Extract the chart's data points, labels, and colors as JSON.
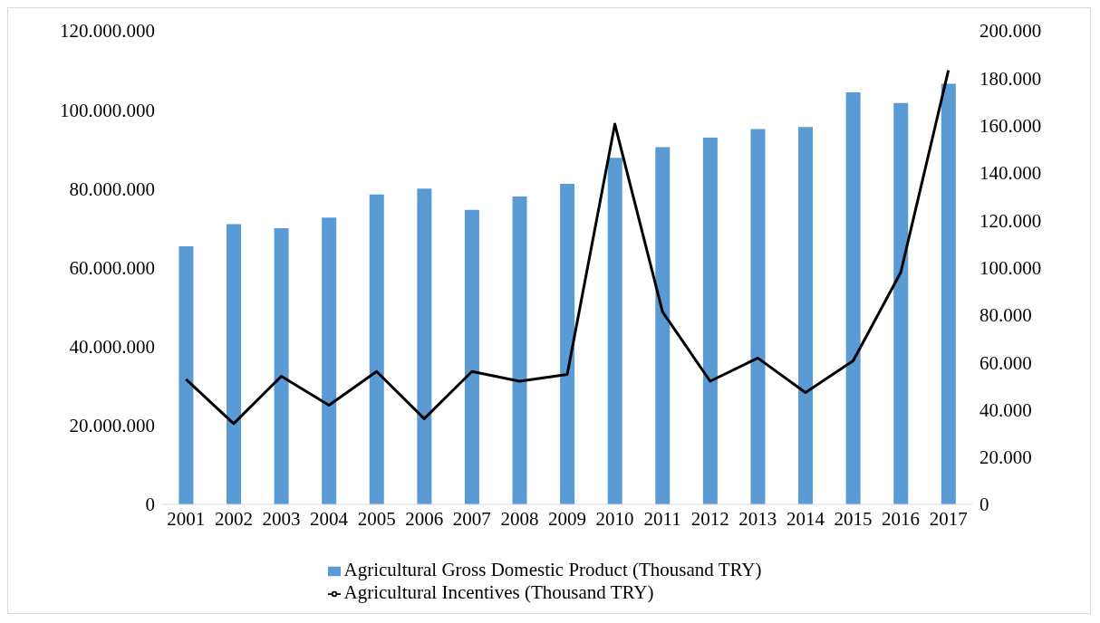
{
  "chart_data": {
    "type": "bar",
    "categories": [
      "2001",
      "2002",
      "2003",
      "2004",
      "2005",
      "2006",
      "2007",
      "2008",
      "2009",
      "2010",
      "2011",
      "2012",
      "2013",
      "2014",
      "2015",
      "2016",
      "2017"
    ],
    "series": [
      {
        "name": "Agricultural Gross Domestic Product (Thousand TRY)",
        "color": "#5b9bd5",
        "values": [
          65400000,
          71000000,
          70000000,
          72700000,
          78500000,
          80000000,
          74600000,
          78000000,
          81200000,
          87800000,
          90500000,
          92900000,
          95100000,
          95600000,
          104400000,
          101700000,
          106600000
        ]
      },
      {
        "name": "Agricultural Incentives (Thousand TRY)",
        "type": "line",
        "axis": "y2",
        "color": "#000000",
        "values": [
          52800,
          34100,
          54100,
          41900,
          56100,
          36200,
          56100,
          52000,
          54900,
          160600,
          81300,
          52000,
          61800,
          47200,
          60600,
          98000,
          183300
        ]
      }
    ],
    "ylim": [
      0,
      120000000
    ],
    "yticks": [
      {
        "value": 0,
        "label": "0"
      },
      {
        "value": 20000000,
        "label": "20.000.000"
      },
      {
        "value": 40000000,
        "label": "40.000.000"
      },
      {
        "value": 60000000,
        "label": "60.000.000"
      },
      {
        "value": 80000000,
        "label": "80.000.000"
      },
      {
        "value": 100000000,
        "label": "100.000.000"
      },
      {
        "value": 120000000,
        "label": "120.000.000"
      }
    ],
    "y2lim": [
      0,
      200000
    ],
    "y2ticks": [
      {
        "value": 0,
        "label": "0"
      },
      {
        "value": 20000,
        "label": "20.000"
      },
      {
        "value": 40000,
        "label": "40.000"
      },
      {
        "value": 60000,
        "label": "60.000"
      },
      {
        "value": 80000,
        "label": "80.000"
      },
      {
        "value": 100000,
        "label": "100.000"
      },
      {
        "value": 120000,
        "label": "120.000"
      },
      {
        "value": 140000,
        "label": "140.000"
      },
      {
        "value": 160000,
        "label": "160.000"
      },
      {
        "value": 180000,
        "label": "180.000"
      },
      {
        "value": 200000,
        "label": "200.000"
      }
    ],
    "grid": false,
    "legend": "bottom",
    "marker": "none",
    "line_style": "solid"
  }
}
